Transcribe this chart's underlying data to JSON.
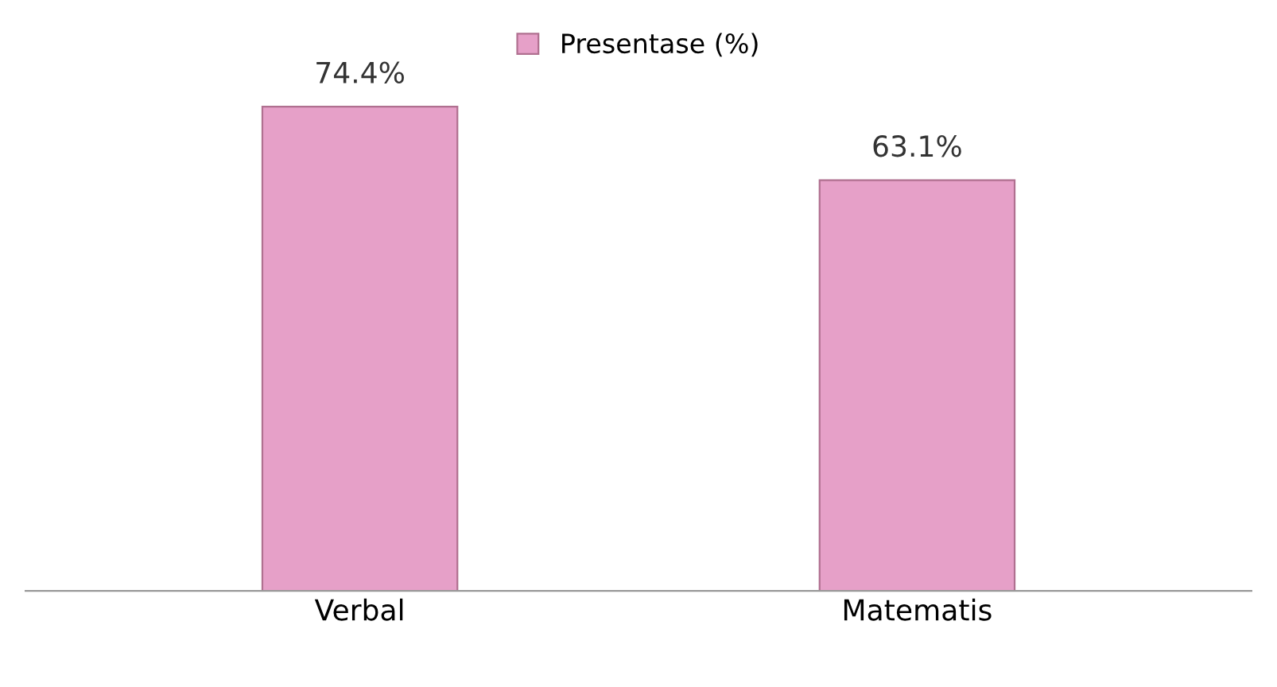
{
  "chart_data": {
    "type": "bar",
    "categories": [
      "Verbal",
      "Matematis"
    ],
    "series": [
      {
        "name": "Presentase (%)",
        "color": "#e6a0c8",
        "values": [
          74.4,
          63.1
        ],
        "value_labels": [
          "74.4%",
          "63.1%"
        ]
      }
    ],
    "tick_labels": "x",
    "grid": false,
    "legend": "top"
  }
}
